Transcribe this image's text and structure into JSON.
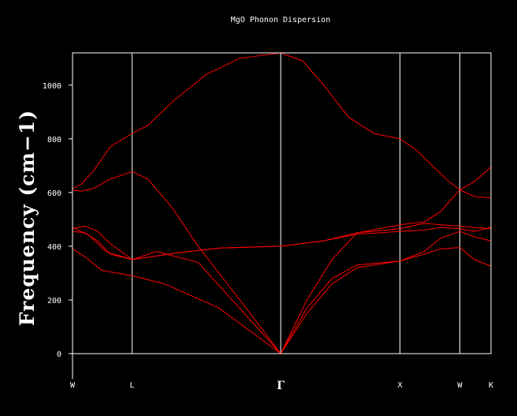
{
  "chart_data": {
    "type": "line",
    "title": "MgO Phonon Dispersion",
    "ylabel": "Frequency (cm−1)",
    "xlabel": "",
    "ylim": [
      0,
      1120
    ],
    "yticks": [
      0,
      200,
      400,
      600,
      800,
      1000
    ],
    "xlim": [
      0,
      1
    ],
    "kpoints": [
      {
        "label": "W",
        "x": 0.0
      },
      {
        "label": "L",
        "x": 0.1425
      },
      {
        "label": "Γ",
        "x": 0.4975
      },
      {
        "label": "X",
        "x": 0.7825
      },
      {
        "label": "W",
        "x": 0.9255
      },
      {
        "label": "K",
        "x": 1.0
      }
    ],
    "series_color": "#ff0000",
    "series": [
      {
        "x": [
          0,
          0.02,
          0.05,
          0.09,
          0.1425,
          0.18,
          0.24,
          0.32,
          0.4,
          0.4975,
          0.55,
          0.6,
          0.66,
          0.72,
          0.7825,
          0.82,
          0.86,
          0.9,
          0.9255,
          0.96,
          1.0
        ],
        "y": [
          615,
          630,
          680,
          770,
          820,
          850,
          940,
          1040,
          1100,
          1120,
          1090,
          1000,
          880,
          820,
          800,
          760,
          700,
          640,
          610,
          640,
          695
        ]
      },
      {
        "x": [
          0,
          0.02,
          0.05,
          0.09,
          0.1425,
          0.18,
          0.24,
          0.3,
          0.4,
          0.4975
        ],
        "y": [
          610,
          605,
          615,
          650,
          678,
          650,
          540,
          400,
          200,
          0
        ]
      },
      {
        "x": [
          0.4975,
          0.56,
          0.62,
          0.68,
          0.7825,
          0.84,
          0.88,
          0.9255,
          0.96,
          1.0
        ],
        "y": [
          0,
          200,
          350,
          450,
          480,
          490,
          530,
          610,
          585,
          580
        ]
      },
      {
        "x": [
          0,
          0.03,
          0.06,
          0.09,
          0.1425,
          0.25,
          0.35,
          0.4975,
          0.6,
          0.68,
          0.7825,
          0.84,
          0.88,
          0.9255,
          0.96,
          1.0
        ],
        "y": [
          465,
          475,
          455,
          410,
          350,
          375,
          393,
          400,
          420,
          450,
          465,
          485,
          480,
          475,
          470,
          465
        ]
      },
      {
        "x": [
          0,
          0.03,
          0.06,
          0.09,
          0.1425,
          0.25,
          0.35,
          0.4975,
          0.6,
          0.68,
          0.7825,
          0.84,
          0.88,
          0.9255,
          0.96,
          1.0
        ],
        "y": [
          455,
          450,
          420,
          370,
          350,
          375,
          393,
          400,
          420,
          445,
          455,
          460,
          470,
          465,
          455,
          470
        ]
      },
      {
        "x": [
          0,
          0.04,
          0.08,
          0.1425,
          0.2,
          0.3,
          0.4975
        ],
        "y": [
          470,
          440,
          380,
          350,
          380,
          340,
          0
        ]
      },
      {
        "x": [
          0,
          0.03,
          0.07,
          0.1425,
          0.22,
          0.35,
          0.4975
        ],
        "y": [
          390,
          360,
          310,
          290,
          260,
          170,
          0
        ]
      },
      {
        "x": [
          0.4975,
          0.56,
          0.62,
          0.68,
          0.7825,
          0.84,
          0.88,
          0.9255,
          0.96,
          1.0
        ],
        "y": [
          0,
          150,
          260,
          320,
          345,
          370,
          390,
          395,
          350,
          325
        ]
      },
      {
        "x": [
          0.4975,
          0.56,
          0.62,
          0.68,
          0.7825,
          0.84,
          0.88,
          0.9255,
          0.96,
          1.0
        ],
        "y": [
          0,
          170,
          280,
          330,
          345,
          380,
          430,
          455,
          435,
          420
        ]
      }
    ]
  }
}
